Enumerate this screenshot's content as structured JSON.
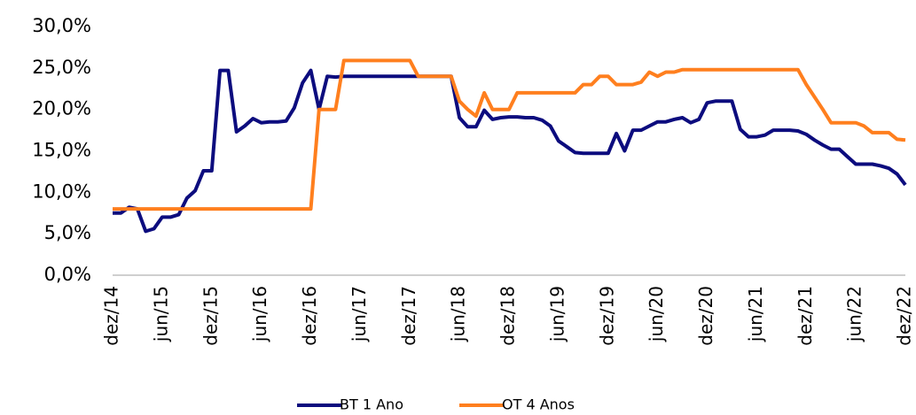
{
  "chart_data": {
    "type": "line",
    "categories": [
      "dez/14",
      null,
      null,
      null,
      null,
      null,
      "jun/15",
      null,
      null,
      null,
      null,
      null,
      "dez/15",
      null,
      null,
      null,
      null,
      null,
      "jun/16",
      null,
      null,
      null,
      null,
      null,
      "dez/16",
      null,
      null,
      null,
      null,
      null,
      "jun/17",
      null,
      null,
      null,
      null,
      null,
      "dez/17",
      null,
      null,
      null,
      null,
      null,
      "jun/18",
      null,
      null,
      null,
      null,
      null,
      "dez/18",
      null,
      null,
      null,
      null,
      null,
      "jun/19",
      null,
      null,
      null,
      null,
      null,
      "dez/19",
      null,
      null,
      null,
      null,
      null,
      "jun/20",
      null,
      null,
      null,
      null,
      null,
      "dez/20",
      null,
      null,
      null,
      null,
      null,
      "jun/21",
      null,
      null,
      null,
      null,
      null,
      "dez/21",
      null,
      null,
      null,
      null,
      null,
      "jun/22",
      null,
      null,
      null,
      null,
      null,
      "dez/22"
    ],
    "series": [
      {
        "name": "BT 1 Ano",
        "color": "#0c0c7e",
        "values": [
          7.5,
          7.5,
          8.2,
          8.0,
          5.3,
          5.6,
          7.0,
          7.0,
          7.3,
          9.3,
          10.2,
          12.6,
          12.6,
          24.7,
          24.7,
          17.3,
          18.0,
          18.9,
          18.4,
          18.5,
          18.5,
          18.6,
          20.2,
          23.2,
          24.7,
          20.0,
          24.0,
          23.9,
          24,
          24,
          24,
          24,
          24,
          24,
          24,
          24,
          24,
          24,
          24,
          24,
          24,
          24,
          19.0,
          17.9,
          17.9,
          19.9,
          18.8,
          19.0,
          19.1,
          19.1,
          19.0,
          19.0,
          18.7,
          18.0,
          16.2,
          15.5,
          14.8,
          14.7,
          14.7,
          14.7,
          14.7,
          17.1,
          15.0,
          17.5,
          17.5,
          18.0,
          18.5,
          18.5,
          18.8,
          19.0,
          18.4,
          18.8,
          20.8,
          21.0,
          21.0,
          21.0,
          17.6,
          16.7,
          16.7,
          16.9,
          17.5,
          17.5,
          17.5,
          17.4,
          17.0,
          16.3,
          15.7,
          15.2,
          15.2,
          14.3,
          13.4,
          13.4,
          13.4,
          13.2,
          12.9,
          12.2,
          10.9
        ]
      },
      {
        "name": "OT 4 Anos",
        "color": "#ff7f1e",
        "values": [
          8,
          8,
          8,
          8,
          8,
          8,
          8,
          8,
          8,
          8,
          8,
          8,
          8,
          8,
          8,
          8,
          8,
          8,
          8,
          8,
          8,
          8,
          8,
          8,
          8,
          20,
          20,
          20,
          25.9,
          25.9,
          25.9,
          25.9,
          25.9,
          25.9,
          25.9,
          25.9,
          25.9,
          24,
          24,
          24,
          24,
          24,
          21.0,
          20.0,
          19.2,
          22.0,
          20.0,
          20.0,
          20.0,
          22.0,
          22,
          22,
          22,
          22,
          22,
          22,
          22,
          23,
          23,
          24,
          24,
          23,
          23,
          23,
          23.3,
          24.5,
          24.0,
          24.5,
          24.5,
          24.8,
          24.8,
          24.8,
          24.8,
          24.8,
          24.8,
          24.8,
          24.8,
          24.8,
          24.8,
          24.8,
          24.8,
          24.8,
          24.8,
          24.8,
          23.0,
          21.5,
          20.0,
          18.4,
          18.4,
          18.4,
          18.4,
          18.0,
          17.2,
          17.2,
          17.2,
          16.4,
          16.3
        ]
      }
    ],
    "ylim": [
      0,
      30
    ],
    "yticks": [
      {
        "value": 0,
        "label": "0,0%"
      },
      {
        "value": 5,
        "label": "5,0%"
      },
      {
        "value": 10,
        "label": "10,0%"
      },
      {
        "value": 15,
        "label": "15,0%"
      },
      {
        "value": 20,
        "label": "20,0%"
      },
      {
        "value": 25,
        "label": "25,0%"
      },
      {
        "value": 30,
        "label": "30,0%"
      }
    ],
    "legend": "bottom"
  }
}
